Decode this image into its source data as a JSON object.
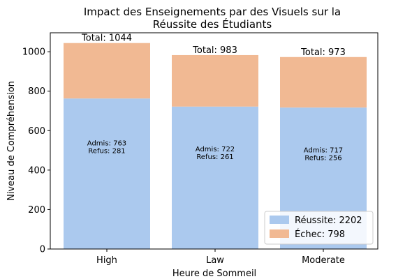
{
  "chart_data": {
    "type": "bar",
    "stacked": true,
    "title_lines": [
      "Impact des Enseignements par des Visuels sur la",
      "Réussite des Étudiants"
    ],
    "xlabel": "Heure de Sommeil",
    "ylabel": "Niveau de Compréhension",
    "categories": [
      "High",
      "Law",
      "Moderate"
    ],
    "series": [
      {
        "name": "Réussite",
        "values": [
          763,
          722,
          717
        ],
        "color": "#abc9ee"
      },
      {
        "name": "Échec",
        "values": [
          281,
          261,
          256
        ],
        "color": "#f1b993"
      }
    ],
    "totals": [
      1044,
      983,
      973
    ],
    "total_labels": [
      "Total: 1044",
      "Total: 983",
      "Total: 973"
    ],
    "inner_labels": [
      [
        "Admis: 763",
        "Refus: 281"
      ],
      [
        "Admis: 722",
        "Refus: 261"
      ],
      [
        "Admis: 717",
        "Refus: 256"
      ]
    ],
    "yticks": [
      0,
      200,
      400,
      600,
      800,
      1000
    ],
    "ylim": [
      0,
      1096
    ],
    "legend": {
      "placement": "lower-right",
      "entries": [
        "Réussite: 2202",
        "Échec: 798"
      ]
    },
    "grid": false
  }
}
